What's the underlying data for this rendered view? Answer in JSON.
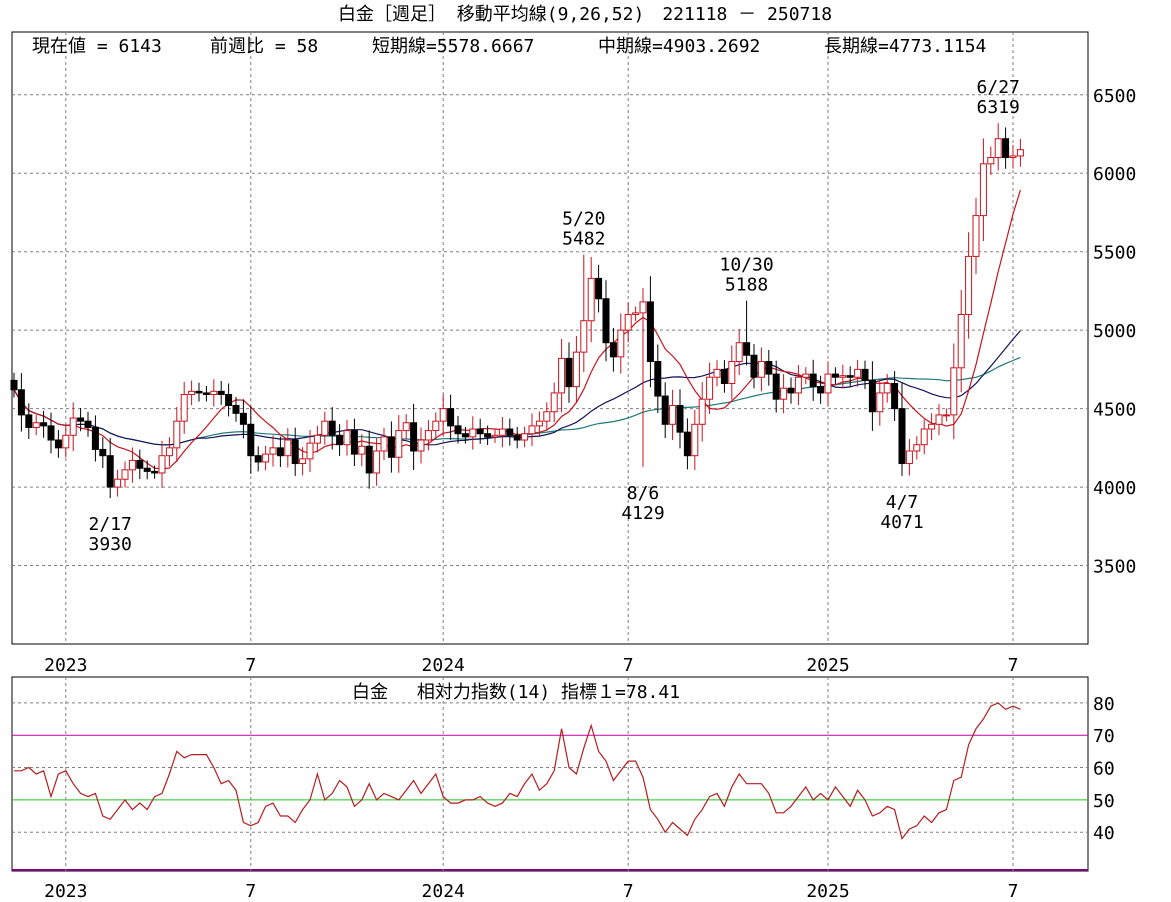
{
  "header": {
    "title": "白金［週足］ 移動平均線(9,26,52)　221118 － 250718",
    "current_value": "現在値 = 6143",
    "week_change": "前週比 = 58",
    "short_line": "短期線=5578.6667",
    "mid_line": "中期線=4903.2692",
    "long_line": "長期線=4773.1154"
  },
  "rsi_header": {
    "title": "白金　 相対力指数(14) 指標１=78.41"
  },
  "colors": {
    "candle_down": "#000000",
    "candle_up": "#c8141e",
    "short_ma": "#c8141e",
    "mid_ma": "#14145a",
    "long_ma": "#1e7a78",
    "rsi_line": "#b41e1e",
    "line_70": "#c000a0",
    "line_50": "#20c020",
    "grid": "#808080"
  },
  "chart_data": [
    {
      "type": "candlestick",
      "title": "白金［週足］ 移動平均線(9,26,52)",
      "date_range": "221118 － 250718",
      "ylim": [
        3000,
        6900
      ],
      "y_ticks": [
        3500,
        4000,
        4500,
        5000,
        5500,
        6000,
        6500
      ],
      "x_ticks": [
        {
          "label": "2023",
          "week": 7
        },
        {
          "label": "7",
          "week": 32
        },
        {
          "label": "2024",
          "week": 58
        },
        {
          "label": "7",
          "week": 83
        },
        {
          "label": "2025",
          "week": 110
        },
        {
          "label": "7",
          "week": 135
        }
      ],
      "annotations": [
        {
          "date": "2/17",
          "value": 3930,
          "week": 13,
          "position": "below"
        },
        {
          "date": "5/20",
          "value": 5482,
          "week": 77,
          "position": "above"
        },
        {
          "date": "8/6",
          "value": 4129,
          "week": 85,
          "position": "below"
        },
        {
          "date": "10/30",
          "value": 5188,
          "week": 99,
          "position": "above"
        },
        {
          "date": "4/7",
          "value": 4071,
          "week": 120,
          "position": "below"
        },
        {
          "date": "6/27",
          "value": 6319,
          "week": 133,
          "position": "above"
        }
      ],
      "series_close": [
        4620,
        4460,
        4380,
        4410,
        4390,
        4300,
        4250,
        4330,
        4440,
        4420,
        4380,
        4240,
        4200,
        4000,
        4050,
        4110,
        4170,
        4120,
        4100,
        4090,
        4200,
        4250,
        4420,
        4590,
        4610,
        4600,
        4590,
        4610,
        4590,
        4520,
        4470,
        4400,
        4200,
        4160,
        4210,
        4250,
        4200,
        4300,
        4150,
        4180,
        4280,
        4330,
        4420,
        4330,
        4270,
        4360,
        4210,
        4260,
        4090,
        4230,
        4320,
        4190,
        4360,
        4410,
        4230,
        4300,
        4360,
        4420,
        4500,
        4390,
        4340,
        4320,
        4370,
        4340,
        4320,
        4330,
        4370,
        4330,
        4300,
        4340,
        4390,
        4420,
        4480,
        4600,
        4820,
        4640,
        4860,
        5060,
        5330,
        5200,
        4920,
        4830,
        5000,
        5100,
        5110,
        5180,
        4800,
        4580,
        4400,
        4520,
        4350,
        4200,
        4400,
        4560,
        4700,
        4750,
        4660,
        4800,
        4920,
        4840,
        4700,
        4800,
        4720,
        4560,
        4630,
        4600,
        4700,
        4720,
        4640,
        4600,
        4720,
        4700,
        4710,
        4700,
        4750,
        4680,
        4480,
        4600,
        4660,
        4500,
        4150,
        4230,
        4270,
        4370,
        4400,
        4460,
        4460,
        4760,
        5100,
        5470,
        5730,
        6060,
        6100,
        6220,
        6100,
        6110,
        6150
      ],
      "short_ma_label": "短期線=5578.6667",
      "mid_ma_label": "中期線=4903.2692",
      "long_ma_label": "長期線=4773.1154"
    },
    {
      "type": "line",
      "title": "白金　 相対力指数(14) 指標１=78.41",
      "ylim": [
        28,
        88
      ],
      "y_ticks": [
        40,
        50,
        60,
        70,
        80
      ],
      "reference_lines": [
        70,
        50
      ],
      "x_ticks": [
        {
          "label": "2023",
          "week": 7
        },
        {
          "label": "7",
          "week": 32
        },
        {
          "label": "2024",
          "week": 58
        },
        {
          "label": "7",
          "week": 83
        },
        {
          "label": "2025",
          "week": 110
        },
        {
          "label": "7",
          "week": 135
        }
      ],
      "values": [
        59,
        59,
        60,
        58,
        59,
        51,
        58,
        59,
        55,
        52,
        51,
        52,
        45,
        44,
        47,
        50,
        47,
        49,
        47,
        51,
        52,
        58,
        65,
        63,
        64,
        64,
        64,
        60,
        55,
        56,
        53,
        43,
        42,
        43,
        48,
        49,
        45,
        45,
        43,
        47,
        50,
        58,
        50,
        52,
        56,
        54,
        48,
        50,
        55,
        50,
        52,
        51,
        50,
        53,
        56,
        52,
        55,
        58,
        51,
        49,
        49,
        50,
        50,
        51,
        49,
        48,
        49,
        52,
        51,
        55,
        58,
        53,
        55,
        59,
        72,
        60,
        58,
        66,
        73,
        65,
        62,
        56,
        59,
        62,
        62,
        57,
        47,
        44,
        40,
        43,
        41,
        39,
        44,
        47,
        51,
        52,
        48,
        54,
        58,
        55,
        55,
        55,
        52,
        46,
        46,
        48,
        51,
        54,
        50,
        52,
        50,
        54,
        51,
        48,
        53,
        50,
        45,
        46,
        48,
        47,
        38,
        41,
        42,
        45,
        43,
        46,
        47,
        56,
        57,
        67,
        72,
        75,
        79,
        80,
        78,
        79,
        78
      ]
    }
  ]
}
